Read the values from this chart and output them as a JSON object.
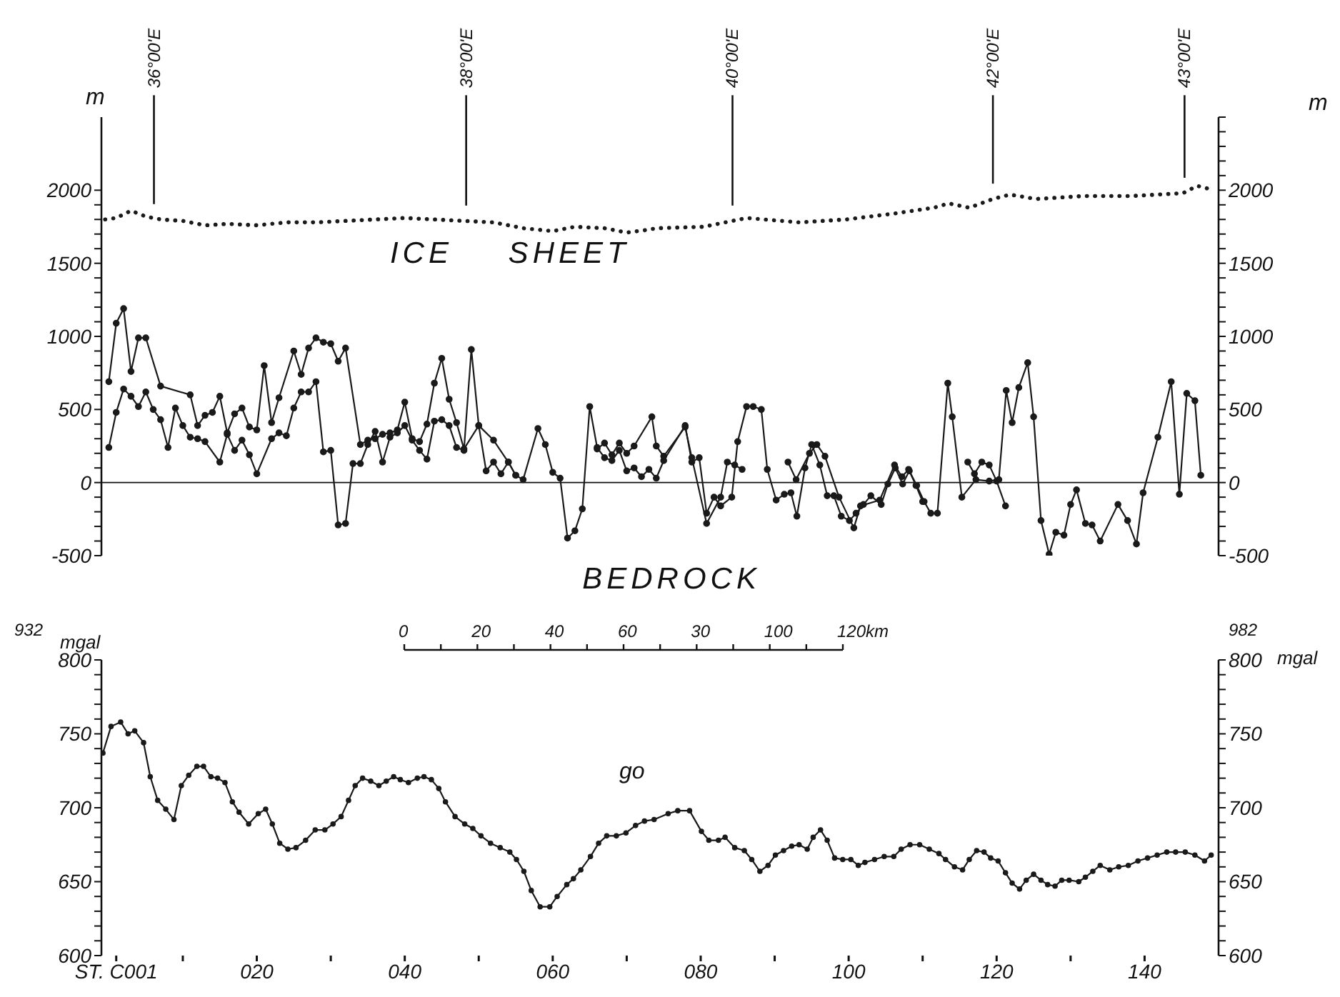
{
  "chart_data": [
    {
      "type": "line",
      "xlim": [
        -1,
        150
      ],
      "tick_labels": "y",
      "ylim": [
        -500,
        2500
      ],
      "yticks": [
        {
          "value": -500,
          "label": "-500"
        },
        {
          "value": -400,
          "label": null
        },
        {
          "value": -300,
          "label": null
        },
        {
          "value": -200,
          "label": null
        },
        {
          "value": -100,
          "label": null
        },
        0,
        {
          "value": 100,
          "label": null
        },
        {
          "value": 200,
          "label": null
        },
        {
          "value": 300,
          "label": null
        },
        {
          "value": 400,
          "label": null
        },
        500,
        {
          "value": 600,
          "label": null
        },
        {
          "value": 700,
          "label": null
        },
        {
          "value": 800,
          "label": null
        },
        {
          "value": 900,
          "label": null
        },
        1000,
        {
          "value": 1100,
          "label": null
        },
        {
          "value": 1200,
          "label": null
        },
        {
          "value": 1300,
          "label": null
        },
        {
          "value": 1400,
          "label": null
        },
        1500,
        {
          "value": 1600,
          "label": null
        },
        {
          "value": 1700,
          "label": null
        },
        {
          "value": 1800,
          "label": null
        },
        {
          "value": 1900,
          "label": null
        },
        2000
      ],
      "y2lim": [
        -500,
        2500
      ],
      "y2ticks": [
        {
          "value": -500,
          "label": "-500"
        },
        {
          "value": -400,
          "label": null
        },
        {
          "value": -300,
          "label": null
        },
        {
          "value": -200,
          "label": null
        },
        {
          "value": -100,
          "label": null
        },
        0,
        {
          "value": 100,
          "label": null
        },
        {
          "value": 200,
          "label": null
        },
        {
          "value": 300,
          "label": null
        },
        {
          "value": 400,
          "label": null
        },
        500,
        {
          "value": 600,
          "label": null
        },
        {
          "value": 700,
          "label": null
        },
        {
          "value": 800,
          "label": null
        },
        {
          "value": 900,
          "label": null
        },
        1000,
        {
          "value": 1100,
          "label": null
        },
        {
          "value": 1200,
          "label": null
        },
        {
          "value": 1300,
          "label": null
        },
        {
          "value": 1400,
          "label": null
        },
        1500,
        {
          "value": 1600,
          "label": null
        },
        {
          "value": 1700,
          "label": null
        },
        {
          "value": 1800,
          "label": null
        },
        {
          "value": 1900,
          "label": null
        },
        2000,
        {
          "value": 2100,
          "label": null
        },
        {
          "value": 2200,
          "label": null
        },
        {
          "value": 2300,
          "label": null
        },
        {
          "value": 2400,
          "label": null
        },
        {
          "value": 2500,
          "label": null
        }
      ],
      "ylabel": "m",
      "y2label": "m",
      "annotations": [
        "ICE SHEET",
        "BEDROCK"
      ],
      "ref_lines": [
        {
          "axis": "y",
          "value": 0
        },
        {
          "axis": "x",
          "value": 6.1,
          "label": "36°00'E"
        },
        {
          "axis": "x",
          "value": 48.3,
          "label": "38°00'E"
        },
        {
          "axis": "x",
          "value": 84.3,
          "label": "40°00'E"
        },
        {
          "axis": "x",
          "value": 119.5,
          "label": "42°00'E"
        },
        {
          "axis": "x",
          "value": 145.4,
          "label": "43°00'E"
        }
      ],
      "series": [
        {
          "color": "#1a1a1a",
          "line_style": "dotted",
          "marker": "none",
          "x": [
            -0.5,
            1,
            3,
            5,
            7,
            10,
            13,
            16,
            20,
            24,
            28,
            32,
            36,
            40,
            44,
            48,
            52,
            56,
            60,
            63,
            67,
            70,
            73,
            74,
            80.4,
            84.3,
            86.2,
            93.3,
            99.7,
            106.1,
            111.5,
            113.5,
            116.3,
            119.5,
            121.8,
            125.3,
            131.7,
            138.1,
            145.2,
            147.1,
            149.4
          ],
          "values": [
            1800,
            1810,
            1860,
            1820,
            1800,
            1790,
            1760,
            1770,
            1760,
            1780,
            1780,
            1790,
            1800,
            1810,
            1800,
            1790,
            1780,
            1740,
            1720,
            1750,
            1740,
            1710,
            1730,
            1740,
            1750,
            1790,
            1810,
            1780,
            1800,
            1840,
            1880,
            1910,
            1880,
            1940,
            1970,
            1940,
            1960,
            1960,
            1980,
            2030,
            2000
          ]
        },
        {
          "color": "#1a1a1a",
          "line_style": "solid",
          "marker": "circle",
          "x": [
            0,
            1,
            2,
            3,
            4,
            5,
            6,
            7,
            8,
            9,
            10,
            11,
            12,
            13,
            15,
            16,
            17,
            18,
            19,
            20,
            22,
            23,
            24,
            25,
            26,
            27,
            28,
            29,
            30,
            31,
            32,
            33,
            34,
            35,
            36,
            37,
            38,
            39,
            40,
            41,
            42,
            43,
            44,
            45,
            46,
            47,
            48,
            49,
            50,
            51,
            52,
            53,
            54,
            55,
            56,
            58,
            59,
            60,
            61,
            62,
            63,
            64,
            65,
            66,
            67,
            68,
            69,
            70,
            71,
            72,
            73,
            74,
            75,
            77.9,
            78.8,
            79.8,
            80.8,
            81.8,
            82.7,
            84.2,
            85,
            86.2,
            87.1,
            88.2,
            89,
            90.2,
            91.3,
            92.2,
            93,
            94.1,
            95,
            96.1,
            97.1,
            98,
            99,
            100.1,
            101,
            102,
            103,
            104.4,
            105.3,
            106.3,
            107.3,
            108.2,
            109.2,
            110.2,
            111.1,
            112,
            113.4,
            114,
            115.3,
            117.2,
            119,
            120.3,
            121.3,
            122.1,
            123,
            124.2,
            125,
            126,
            127.1,
            128,
            129.1,
            130,
            130.8,
            132,
            132.9,
            134,
            136.4,
            137.7,
            138.9,
            139.8,
            141.8,
            143.6,
            144.7,
            145.7,
            146.8,
            147.6
          ],
          "values": [
            240,
            480,
            640,
            590,
            520,
            620,
            500,
            430,
            240,
            510,
            390,
            310,
            300,
            280,
            140,
            330,
            220,
            290,
            190,
            60,
            300,
            340,
            320,
            510,
            620,
            620,
            690,
            210,
            220,
            -290,
            -280,
            130,
            130,
            260,
            350,
            140,
            310,
            340,
            390,
            290,
            220,
            160,
            420,
            430,
            390,
            240,
            220,
            910,
            390,
            80,
            140,
            60,
            140,
            50,
            20,
            370,
            260,
            70,
            30,
            -380,
            -330,
            -180,
            520,
            240,
            170,
            150,
            220,
            80,
            100,
            40,
            90,
            30,
            150,
            390,
            140,
            170,
            -210,
            -100,
            -160,
            -100,
            280,
            520,
            520,
            500,
            90,
            -120,
            -80,
            -70,
            -230,
            100,
            260,
            120,
            -90,
            -90,
            -230,
            -260,
            -210,
            -150,
            -90,
            -150,
            -10,
            100,
            -10,
            80,
            -20,
            -130,
            -210,
            -210,
            680,
            450,
            -100,
            20,
            10,
            20,
            630,
            410,
            650,
            820,
            450,
            -260,
            -490,
            -340,
            -360,
            -150,
            -50,
            -280,
            -290,
            -400,
            -150,
            -260,
            -420,
            -70,
            310,
            690,
            -80,
            610,
            560,
            50
          ]
        },
        {
          "color": "#1a1a1a",
          "line_style": "solid",
          "marker": "circle",
          "x": [
            0,
            1,
            2,
            3,
            4,
            5,
            7,
            11,
            12,
            13,
            14,
            15,
            16,
            17,
            18,
            19,
            20,
            21,
            22,
            23,
            25,
            26,
            27,
            28,
            29,
            30,
            31,
            32,
            34,
            35,
            36,
            37,
            38,
            39,
            40,
            41,
            42,
            43,
            44,
            45,
            46,
            47,
            48,
            50,
            52,
            54,
            55,
            56,
            66,
            67,
            68,
            69,
            70,
            71,
            73.4,
            74,
            75,
            77.9,
            78.8,
            80.8,
            82.7,
            83.6,
            84.6,
            85.6,
            86,
            91.8,
            92.9,
            94.7,
            95.7,
            96.8,
            98.7,
            100.7,
            101.6,
            104.2,
            106.2,
            107.2,
            108.1,
            109.1,
            110,
            111,
            116.1,
            117,
            118,
            119,
            120,
            121.2
          ],
          "values": [
            690,
            1090,
            1190,
            760,
            990,
            990,
            660,
            600,
            390,
            460,
            480,
            590,
            340,
            470,
            510,
            380,
            360,
            800,
            410,
            580,
            900,
            740,
            920,
            990,
            960,
            950,
            830,
            920,
            260,
            290,
            300,
            330,
            340,
            360,
            550,
            300,
            280,
            400,
            680,
            850,
            570,
            410,
            230,
            390,
            290,
            140,
            50,
            null,
            230,
            270,
            190,
            270,
            200,
            250,
            450,
            250,
            180,
            380,
            170,
            -280,
            -100,
            140,
            120,
            90,
            null,
            140,
            20,
            200,
            260,
            180,
            -100,
            -310,
            -160,
            -120,
            120,
            40,
            90,
            -20,
            -130,
            null,
            140,
            60,
            140,
            120,
            10,
            -160
          ]
        }
      ]
    },
    {
      "type": "line",
      "xlim": [
        -1,
        150
      ],
      "xticks": [
        {
          "value": 1,
          "label": "ST. C001"
        },
        {
          "value": 10,
          "label": null
        },
        {
          "value": 20,
          "label": "020"
        },
        {
          "value": 30,
          "label": null
        },
        {
          "value": 40,
          "label": "040"
        },
        {
          "value": 50,
          "label": null
        },
        {
          "value": 60,
          "label": "060"
        },
        {
          "value": 70,
          "label": null
        },
        {
          "value": 80,
          "label": "080"
        },
        {
          "value": 90,
          "label": null
        },
        100,
        {
          "value": 110,
          "label": null
        },
        120,
        {
          "value": 130,
          "label": null
        },
        140
      ],
      "ylim": [
        600,
        800
      ],
      "yticks": [
        600,
        {
          "value": 610,
          "label": null
        },
        {
          "value": 620,
          "label": null
        },
        {
          "value": 630,
          "label": null
        },
        {
          "value": 640,
          "label": null
        },
        650,
        {
          "value": 660,
          "label": null
        },
        {
          "value": 670,
          "label": null
        },
        {
          "value": 680,
          "label": null
        },
        {
          "value": 690,
          "label": null
        },
        700,
        {
          "value": 710,
          "label": null
        },
        {
          "value": 720,
          "label": null
        },
        {
          "value": 730,
          "label": null
        },
        {
          "value": 740,
          "label": null
        },
        750,
        {
          "value": 760,
          "label": null
        },
        {
          "value": 770,
          "label": null
        },
        {
          "value": 780,
          "label": null
        },
        {
          "value": 790,
          "label": null
        },
        800
      ],
      "y2lim": [
        600,
        800
      ],
      "y2ticks": [
        600,
        {
          "value": 610,
          "label": null
        },
        {
          "value": 620,
          "label": null
        },
        {
          "value": 630,
          "label": null
        },
        {
          "value": 640,
          "label": null
        },
        650,
        {
          "value": 660,
          "label": null
        },
        {
          "value": 670,
          "label": null
        },
        {
          "value": 680,
          "label": null
        },
        {
          "value": 690,
          "label": null
        },
        700,
        {
          "value": 710,
          "label": null
        },
        {
          "value": 720,
          "label": null
        },
        {
          "value": 730,
          "label": null
        },
        {
          "value": 740,
          "label": null
        },
        750,
        {
          "value": 760,
          "label": null
        },
        {
          "value": 770,
          "label": null
        },
        {
          "value": 780,
          "label": null
        },
        {
          "value": 790,
          "label": null
        },
        800
      ],
      "ylabel": "mgal",
      "y2label": "mgal",
      "marker": "circle",
      "line_style": "solid",
      "annotations": [
        "932",
        "982",
        "0",
        "20",
        "40",
        "60",
        "30",
        "100",
        "120km"
      ],
      "series": [
        {
          "name": "go",
          "color": "#1a1a1a",
          "x": [
            -0.8,
            0.3,
            1.6,
            2.6,
            3.5,
            4.7,
            5.6,
            6.6,
            7.7,
            8.8,
            9.8,
            10.8,
            11.9,
            12.8,
            13.8,
            14.7,
            15.7,
            16.7,
            17.6,
            18.9,
            20.2,
            21.2,
            22.1,
            23.1,
            24.2,
            25.3,
            26.6,
            27.9,
            29.2,
            30.3,
            31.4,
            32.4,
            33.3,
            34.3,
            35.4,
            36.5,
            37.5,
            38.5,
            39.4,
            40.5,
            41.7,
            42.6,
            43.6,
            44.6,
            45.5,
            46.8,
            48.1,
            49.2,
            50.3,
            51.6,
            52.9,
            54.2,
            55.1,
            56.1,
            57.1,
            58.3,
            59.6,
            60.6,
            61.9,
            62.8,
            63.8,
            65.1,
            66.2,
            67.3,
            68.6,
            69.9,
            71.2,
            72.4,
            73.7,
            75.6,
            76.9,
            78.5,
            80.1,
            81.1,
            82.4,
            83.3,
            84.6,
            85.9,
            86.9,
            88,
            89.1,
            90.1,
            91.2,
            92.3,
            93.3,
            94.4,
            95.2,
            96.2,
            97.1,
            98.1,
            99.2,
            100.3,
            101.3,
            102.2,
            103.5,
            104.8,
            106.1,
            107.1,
            108.3,
            109.6,
            110.9,
            112.2,
            113.1,
            114.3,
            115.4,
            116.3,
            117.3,
            118.3,
            119.2,
            120.2,
            121.2,
            122.1,
            123.1,
            124,
            125,
            126,
            126.9,
            127.9,
            128.8,
            129.8,
            131.1,
            132,
            133,
            134,
            135.3,
            136.5,
            137.8,
            139.1,
            140.4,
            141.7,
            143,
            144.2,
            145.5,
            146.8,
            148.1,
            149
          ],
          "values": [
            737,
            755,
            758,
            750,
            752,
            744,
            721,
            705,
            699,
            692,
            715,
            722,
            728,
            728,
            721,
            720,
            717,
            704,
            697,
            689,
            696,
            699,
            689,
            676,
            672,
            673,
            678,
            685,
            685,
            689,
            694,
            705,
            715,
            720,
            718,
            715,
            718,
            721,
            719,
            717,
            720,
            721,
            719,
            713,
            704,
            694,
            689,
            686,
            681,
            676,
            673,
            670,
            665,
            657,
            644,
            633,
            633,
            640,
            648,
            652,
            658,
            667,
            676,
            681,
            681,
            683,
            688,
            691,
            692,
            696,
            698,
            698,
            684,
            678,
            678,
            680,
            673,
            671,
            665,
            657,
            661,
            668,
            671,
            674,
            675,
            672,
            680,
            685,
            678,
            666,
            665,
            665,
            661,
            663,
            665,
            667,
            667,
            672,
            675,
            675,
            672,
            669,
            665,
            660,
            658,
            665,
            671,
            670,
            666,
            664,
            656,
            649,
            645,
            651,
            655,
            651,
            648,
            647,
            651,
            651,
            650,
            653,
            657,
            661,
            658,
            660,
            661,
            664,
            666,
            668,
            670,
            670,
            670,
            668,
            664,
            668
          ]
        }
      ]
    }
  ]
}
